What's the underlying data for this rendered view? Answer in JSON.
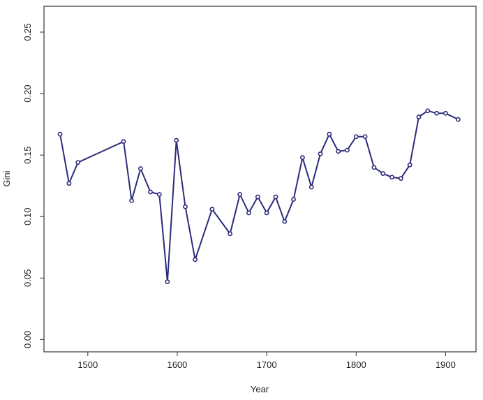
{
  "chart_data": {
    "type": "line",
    "title": "",
    "xlabel": "Year",
    "ylabel": "Gini",
    "xlim": [
      1451,
      1934
    ],
    "ylim": [
      -0.01,
      0.271
    ],
    "xticks": [
      1500,
      1600,
      1700,
      1800,
      1900
    ],
    "yticks": [
      "0.00",
      "0.05",
      "0.10",
      "0.15",
      "0.20",
      "0.25"
    ],
    "grid": false,
    "color": "#2b2b7a",
    "marker": "open-circle",
    "series": [
      {
        "x": [
          1469,
          1479,
          1489,
          1540,
          1549,
          1559,
          1570,
          1580,
          1589,
          1599,
          1609,
          1620,
          1639,
          1659,
          1670,
          1680,
          1690,
          1700,
          1710,
          1720,
          1730,
          1740,
          1750,
          1760,
          1770,
          1780,
          1790,
          1800,
          1810,
          1820,
          1830,
          1840,
          1850,
          1860,
          1870,
          1880,
          1890,
          1900,
          1914
        ],
        "y": [
          0.167,
          0.127,
          0.144,
          0.161,
          0.113,
          0.139,
          0.12,
          0.118,
          0.047,
          0.162,
          0.108,
          0.065,
          0.106,
          0.086,
          0.118,
          0.103,
          0.116,
          0.103,
          0.116,
          0.096,
          0.114,
          0.148,
          0.124,
          0.151,
          0.167,
          0.153,
          0.154,
          0.165,
          0.165,
          0.14,
          0.135,
          0.132,
          0.131,
          0.142,
          0.181,
          0.186,
          0.184,
          0.184,
          0.179
        ]
      }
    ]
  }
}
